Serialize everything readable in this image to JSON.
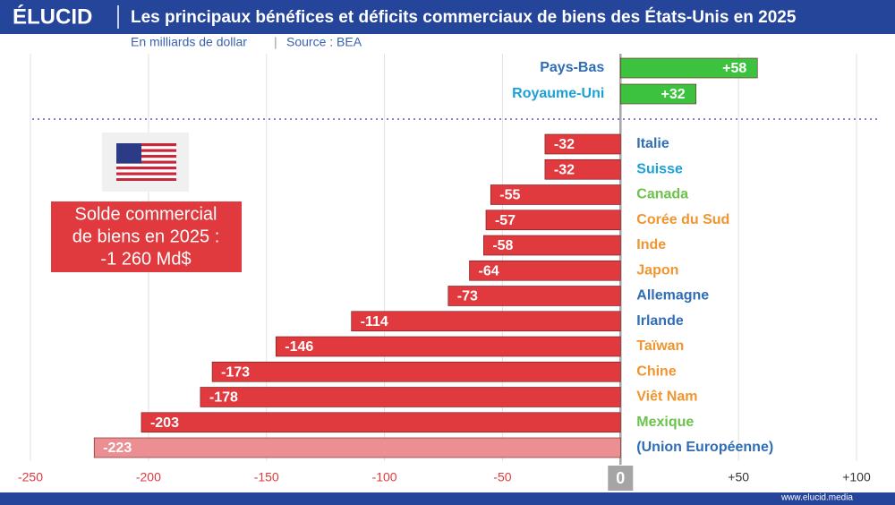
{
  "brand": "ÉLUCID",
  "footer": "www.elucid.media",
  "chart_data": {
    "type": "hbar",
    "title": "Les principaux bénéfices et déficits commerciaux de biens des États-Unis en 2025",
    "subtitle": "En milliards de dollar",
    "source": "Source : BEA",
    "annotation": [
      "Solde commercial",
      "de biens en 2025 :",
      "-1 260 Md$"
    ],
    "categories": [
      "Pays-Bas",
      "Royaume-Uni",
      "Italie",
      "Suisse",
      "Canada",
      "Corée du Sud",
      "Inde",
      "Japon",
      "Allemagne",
      "Irlande",
      "Taïwan",
      "Chine",
      "Viêt Nam",
      "Mexique",
      "(Union Européenne)"
    ],
    "values": [
      58,
      32,
      -32,
      -32,
      -55,
      -57,
      -58,
      -64,
      -73,
      -114,
      -146,
      -173,
      -178,
      -203,
      -223
    ],
    "value_labels": [
      "+58",
      "+32",
      "-32",
      "-32",
      "-55",
      "-57",
      "-58",
      "-64",
      "-73",
      "-114",
      "-146",
      "-173",
      "-178",
      "-203",
      "-223"
    ],
    "bar_colors": [
      "#3dc23f",
      "#3dc23f",
      "#e0393e",
      "#e0393e",
      "#e0393e",
      "#e0393e",
      "#e0393e",
      "#e0393e",
      "#e0393e",
      "#e0393e",
      "#e0393e",
      "#e0393e",
      "#e0393e",
      "#e0393e",
      "#ec8f92"
    ],
    "label_colors": [
      "#2f6db5",
      "#1ca0d8",
      "#2f6db5",
      "#1ca0d8",
      "#6cc24a",
      "#f0952f",
      "#f0952f",
      "#f0952f",
      "#2f6db5",
      "#2f6db5",
      "#f0952f",
      "#f0952f",
      "#f0952f",
      "#6cc24a",
      "#2f6db5"
    ],
    "xlim": [
      -250,
      100
    ],
    "xticks": [
      -250,
      -200,
      -150,
      -100,
      -50,
      0,
      {
        "value": 50,
        "label": "+50"
      },
      {
        "value": 100,
        "label": "+100"
      }
    ],
    "grid": true
  }
}
